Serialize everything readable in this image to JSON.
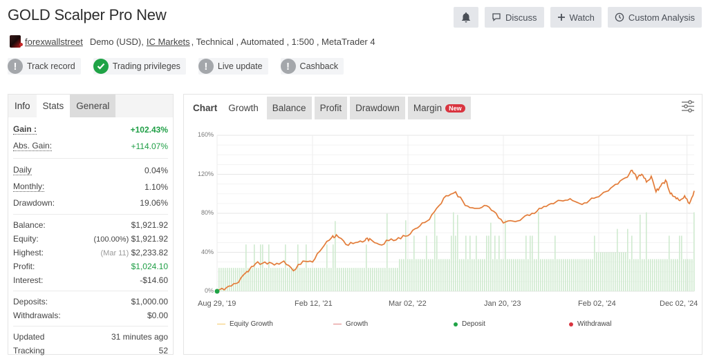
{
  "header": {
    "title": "GOLD Scalper Pro New",
    "actions": {
      "bell_icon": "bell-icon",
      "discuss": "Discuss",
      "watch": "Watch",
      "custom_analysis": "Custom Analysis"
    },
    "meta": {
      "author": "forexwallstreet",
      "account_type": "Demo (USD),",
      "broker": "IC Markets",
      "details": ", Technical , Automated , 1:500 , MetaTrader 4"
    },
    "badges": [
      {
        "label": "Track record",
        "status": "warning",
        "icon": "exclamation-icon"
      },
      {
        "label": "Trading privileges",
        "status": "verified",
        "icon": "check-icon"
      },
      {
        "label": "Live update",
        "status": "warning",
        "icon": "exclamation-icon"
      },
      {
        "label": "Cashback",
        "status": "warning",
        "icon": "exclamation-icon"
      }
    ]
  },
  "stats_panel": {
    "tabs": [
      "Info",
      "Stats",
      "General"
    ],
    "active_tab": "Stats",
    "gain": {
      "label": "Gain :",
      "value": "+102.43%"
    },
    "abs_gain": {
      "label": "Abs. Gain:",
      "value": "+114.07%"
    },
    "daily": {
      "label": "Daily",
      "value": "0.04%"
    },
    "monthly": {
      "label": "Monthly:",
      "value": "1.10%"
    },
    "drawdown": {
      "label": "Drawdown:",
      "value": "19.06%"
    },
    "balance": {
      "label": "Balance:",
      "value": "$1,921.92"
    },
    "equity": {
      "label": "Equity:",
      "pct": "(100.00%)",
      "value": "$1,921.92"
    },
    "highest": {
      "label": "Highest:",
      "date": "(Mar 11)",
      "value": "$2,233.82"
    },
    "profit": {
      "label": "Profit:",
      "value": "$1,024.10"
    },
    "interest": {
      "label": "Interest:",
      "value": "-$14.60"
    },
    "deposits": {
      "label": "Deposits:",
      "value": "$1,000.00"
    },
    "withdrawals": {
      "label": "Withdrawals:",
      "value": "$0.00"
    },
    "updated": {
      "label": "Updated",
      "value": "31 minutes ago"
    },
    "tracking": {
      "label": "Tracking",
      "value": "52"
    }
  },
  "chart_panel": {
    "tabs": [
      {
        "label": "Chart"
      },
      {
        "label": "Growth"
      },
      {
        "label": "Balance"
      },
      {
        "label": "Profit"
      },
      {
        "label": "Drawdown"
      },
      {
        "label": "Margin",
        "badge": "New"
      }
    ],
    "active_tab": "Growth",
    "settings_icon": "sliders-icon"
  },
  "colors": {
    "growth_line": "#e0703a",
    "equity_line": "#f5c969",
    "deposit": "#1fa346",
    "withdrawal": "#d9343f",
    "bars": "#c8e8c8",
    "gain_green": "#1e9e45"
  },
  "chart_data": {
    "type": "line",
    "title": "Growth",
    "xlabel": "",
    "ylabel": "",
    "ylim": [
      0,
      160
    ],
    "yticks": [
      "0%",
      "40%",
      "80%",
      "120%",
      "160%"
    ],
    "xticks": [
      "Aug 29, '19",
      "Feb 12, '21",
      "Mar 02, '22",
      "Jan 20, '23",
      "Feb 02, '24",
      "Dec 02, '24"
    ],
    "grid": true,
    "legend": [
      "Equity Growth",
      "Growth",
      "Deposit",
      "Withdrawal"
    ],
    "legend_position": "bottom",
    "series": [
      {
        "name": "Growth",
        "x_frac": [
          0,
          0.02,
          0.04,
          0.06,
          0.07,
          0.08,
          0.1,
          0.12,
          0.14,
          0.16,
          0.18,
          0.2,
          0.22,
          0.24,
          0.25,
          0.27,
          0.29,
          0.31,
          0.32,
          0.34,
          0.36,
          0.38,
          0.4,
          0.42,
          0.44,
          0.46,
          0.48,
          0.5,
          0.52,
          0.54,
          0.56,
          0.58,
          0.6,
          0.62,
          0.64,
          0.66,
          0.68,
          0.7,
          0.72,
          0.74,
          0.76,
          0.78,
          0.8,
          0.82,
          0.84,
          0.86,
          0.87,
          0.88,
          0.89,
          0.9,
          0.91,
          0.92,
          0.93,
          0.94,
          0.95,
          0.96,
          0.97,
          0.98,
          0.99,
          1.0
        ],
        "values": [
          0,
          4,
          8,
          19,
          24,
          28,
          30,
          27,
          31,
          21,
          31,
          30,
          44,
          55,
          58,
          48,
          50,
          52,
          54,
          48,
          52,
          55,
          57,
          65,
          72,
          85,
          98,
          102,
          88,
          85,
          88,
          82,
          70,
          72,
          75,
          80,
          85,
          90,
          93,
          95,
          90,
          93,
          97,
          103,
          110,
          117,
          124,
          115,
          120,
          112,
          118,
          102,
          108,
          114,
          100,
          97,
          93,
          98,
          90,
          103
        ]
      },
      {
        "name": "Deposit",
        "points": [
          {
            "x": "Aug 29, '19",
            "y": 0
          }
        ]
      },
      {
        "name": "Activity bars (base level)",
        "segments": [
          {
            "from_frac": 0.0,
            "to_frac": 0.38,
            "value": 24
          },
          {
            "from_frac": 0.38,
            "to_frac": 0.79,
            "value": 33
          },
          {
            "from_frac": 0.79,
            "to_frac": 0.86,
            "value": 40
          },
          {
            "from_frac": 0.86,
            "to_frac": 1.0,
            "value": 33
          }
        ]
      }
    ]
  },
  "legend": {
    "equity_growth": "Equity Growth",
    "growth": "Growth",
    "deposit": "Deposit",
    "withdrawal": "Withdrawal"
  }
}
